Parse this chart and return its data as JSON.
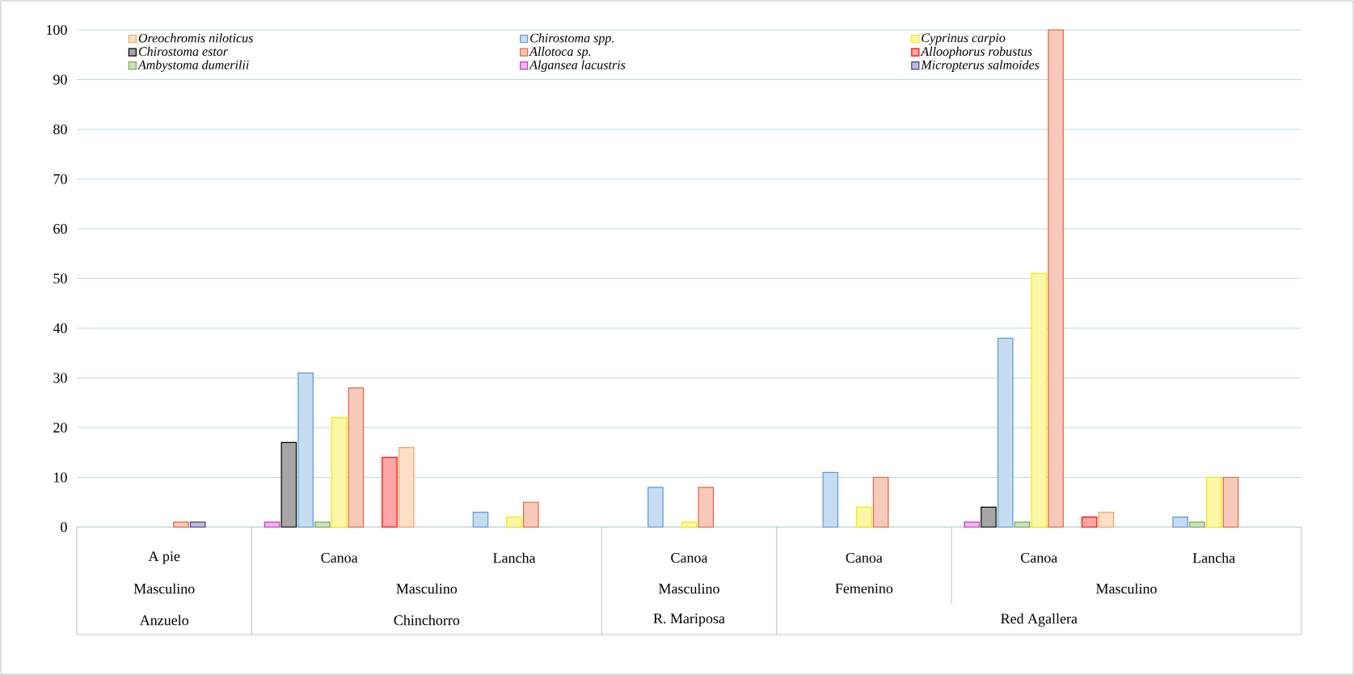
{
  "chart_data": {
    "type": "bar",
    "categories": [
      "A pie",
      "Canoa",
      "Lancha",
      "Canoa",
      "Canoa",
      "Canoa",
      "Lancha"
    ],
    "series": [
      {
        "name": "Oreochromis niloticus",
        "color": "#f4a460",
        "values": [
          null,
          16,
          null,
          null,
          null,
          3,
          null
        ]
      },
      {
        "name": "Chirostoma spp.",
        "color": "#5b9bd5",
        "values": [
          null,
          31,
          3,
          8,
          11,
          38,
          2
        ]
      },
      {
        "name": "Cyprinus carpio",
        "color": "#f5e800",
        "values": [
          null,
          22,
          2,
          1,
          4,
          51,
          10
        ]
      },
      {
        "name": "Chirostoma estor",
        "color": "#000000",
        "values": [
          null,
          17,
          null,
          null,
          null,
          4,
          null
        ]
      },
      {
        "name": "Allotoca sp.",
        "color": "#e4643c",
        "values": [
          1,
          28,
          5,
          8,
          10,
          100,
          10
        ]
      },
      {
        "name": "Alloophorus robustus",
        "color": "#ff0000",
        "values": [
          null,
          14,
          null,
          null,
          null,
          2,
          null
        ]
      },
      {
        "name": "Ambystoma dumerilii",
        "color": "#70ad47",
        "values": [
          null,
          1,
          null,
          null,
          null,
          1,
          1
        ]
      },
      {
        "name": "Algansea lacustris",
        "color": "#cc33cc",
        "values": [
          null,
          1,
          null,
          null,
          null,
          1,
          null
        ]
      },
      {
        "name": "Micropterus salmoides",
        "color": "#44408a",
        "values": [
          1,
          null,
          null,
          null,
          null,
          null,
          null
        ]
      }
    ],
    "annotations": [
      "Masculino",
      "Masculino",
      "Masculino",
      "Femenino",
      "Masculino",
      "Anzuelo",
      "Chinchorro",
      "R. Mariposa",
      "Red Agallera"
    ],
    "ylim": [
      0,
      100
    ],
    "yticks": [
      0,
      10,
      20,
      30,
      40,
      50,
      60,
      70,
      80,
      90,
      100
    ],
    "grid": "y",
    "legend": "top left"
  }
}
